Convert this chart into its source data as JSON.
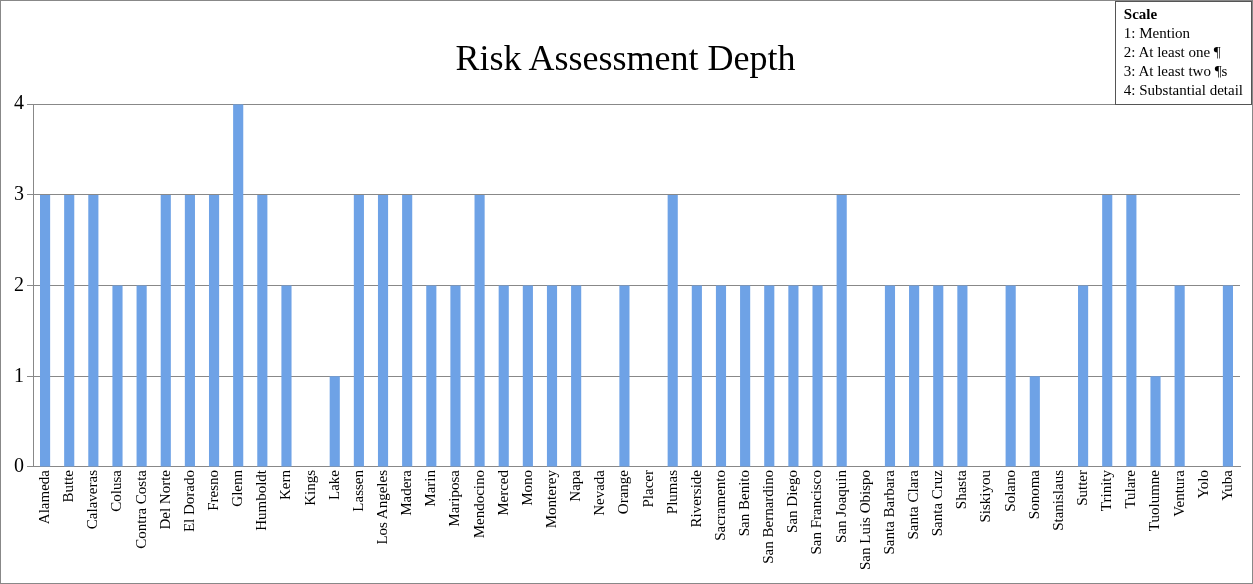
{
  "chart_data": {
    "type": "bar",
    "title": "Risk Assessment Depth",
    "categories": [
      "Alameda",
      "Butte",
      "Calaveras",
      "Colusa",
      "Contra Costa",
      "Del Norte",
      "El Dorado",
      "Fresno",
      "Glenn",
      "Humboldt",
      "Kern",
      "Kings",
      "Lake",
      "Lassen",
      "Los Angeles",
      "Madera",
      "Marin",
      "Mariposa",
      "Mendocino",
      "Merced",
      "Mono",
      "Monterey",
      "Napa",
      "Nevada",
      "Orange",
      "Placer",
      "Plumas",
      "Riverside",
      "Sacramento",
      "San Benito",
      "San Bernardino",
      "San Diego",
      "San Francisco",
      "San Joaquin",
      "San Luis Obispo",
      "Santa Barbara",
      "Santa Clara",
      "Santa Cruz",
      "Shasta",
      "Siskiyou",
      "Solano",
      "Sonoma",
      "Stanislaus",
      "Sutter",
      "Trinity",
      "Tulare",
      "Tuolumne",
      "Ventura",
      "Yolo",
      "Yuba"
    ],
    "values": [
      3,
      3,
      3,
      2,
      2,
      3,
      3,
      3,
      4,
      3,
      2,
      0,
      1,
      3,
      3,
      3,
      2,
      2,
      3,
      2,
      2,
      2,
      2,
      0,
      2,
      0,
      3,
      2,
      2,
      2,
      2,
      2,
      2,
      3,
      0,
      2,
      2,
      2,
      2,
      0,
      2,
      1,
      0,
      2,
      3,
      3,
      1,
      2,
      0,
      2
    ],
    "color": "#6ea2e6",
    "ylim": [
      0,
      4
    ],
    "yticks": [
      0,
      1,
      2,
      3,
      4
    ],
    "grid": "y",
    "annotations": [
      "Scale",
      "1: Mention",
      "2: At least one ¶",
      "3: At least two ¶s",
      "4: Substantial detail"
    ]
  }
}
